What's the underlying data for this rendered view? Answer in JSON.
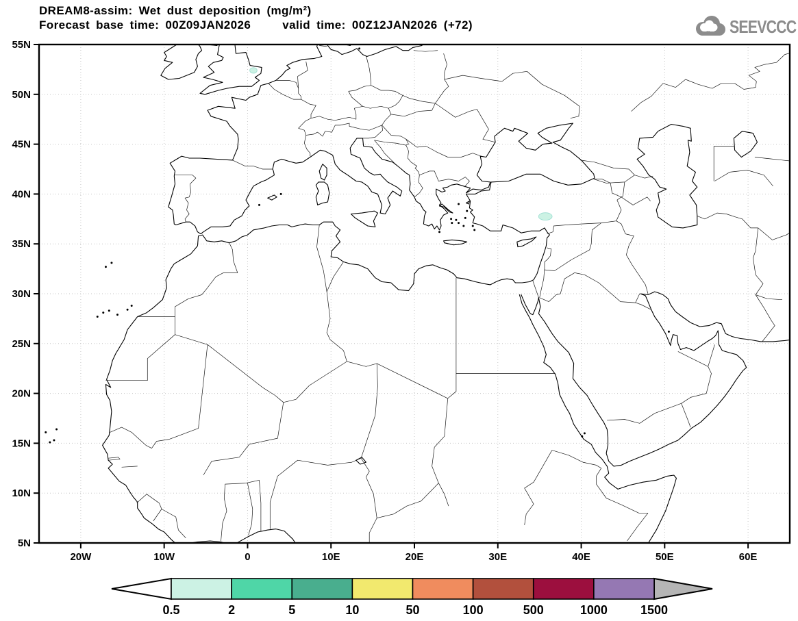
{
  "header": {
    "title": "DREAM8-assim: Wet dust deposition (mg/m²)",
    "forecast_base": "Forecast base time: 00Z09JAN2026",
    "valid_time": "valid time: 00Z12JAN2026 (+72)"
  },
  "logo": {
    "text": "SEEVCCC"
  },
  "chart_data": {
    "type": "map",
    "title": "DREAM8-assim: Wet dust deposition (mg/m²)",
    "variable": "Wet dust deposition",
    "units": "mg/m²",
    "model": "DREAM8-assim",
    "forecast_base_time": "00Z09JAN2026",
    "valid_time": "00Z12JAN2026",
    "forecast_hour": "+72",
    "lon_range": [
      -25,
      65
    ],
    "lat_range": [
      5,
      55
    ],
    "grid": "dotted graticule, 10 deg lon x 5 deg lat",
    "legend_position": "bottom",
    "x_ticks": [
      {
        "label": "20W",
        "lon": -20
      },
      {
        "label": "10W",
        "lon": -10
      },
      {
        "label": "0",
        "lon": 0
      },
      {
        "label": "10E",
        "lon": 10
      },
      {
        "label": "20E",
        "lon": 20
      },
      {
        "label": "30E",
        "lon": 30
      },
      {
        "label": "40E",
        "lon": 40
      },
      {
        "label": "50E",
        "lon": 50
      },
      {
        "label": "60E",
        "lon": 60
      }
    ],
    "y_ticks": [
      {
        "label": "55N",
        "lat": 55
      },
      {
        "label": "50N",
        "lat": 50
      },
      {
        "label": "45N",
        "lat": 45
      },
      {
        "label": "40N",
        "lat": 40
      },
      {
        "label": "35N",
        "lat": 35
      },
      {
        "label": "30N",
        "lat": 30
      },
      {
        "label": "25N",
        "lat": 25
      },
      {
        "label": "20N",
        "lat": 20
      },
      {
        "label": "15N",
        "lat": 15
      },
      {
        "label": "10N",
        "lat": 10
      },
      {
        "label": "5N",
        "lat": 5
      }
    ],
    "colorbar": {
      "labels": [
        "0.5",
        "2",
        "5",
        "10",
        "50",
        "100",
        "500",
        "1000",
        "1500"
      ],
      "boundaries": [
        0.5,
        2,
        5,
        10,
        50,
        100,
        500,
        1000,
        1500
      ],
      "segment_colors": [
        "#ccf2e4",
        "#4fd6a7",
        "#49ae8e",
        "#f2e96e",
        "#f08c5e",
        "#b2503d",
        "#9c0f3e",
        "#9578b3"
      ],
      "under_color": "#ffffff",
      "over_color": "#b5b5b5",
      "outline_color": "#000000"
    },
    "deposition_areas": [
      {
        "name": "East Anglia / North Sea coast (UK)",
        "lon": 0.7,
        "lat": 52.4,
        "extent_deg": [
          0.7,
          0.45
        ],
        "level": "0.5-2"
      },
      {
        "name": "Southeastern Turkey",
        "lon": 35.7,
        "lat": 37.75,
        "extent_deg": [
          1.3,
          0.6
        ],
        "level": "0.5-2"
      }
    ],
    "colors": {
      "coastline": "#000000",
      "gridline": "#c6c6c6",
      "logo_gray": "#8c8c8c"
    }
  }
}
